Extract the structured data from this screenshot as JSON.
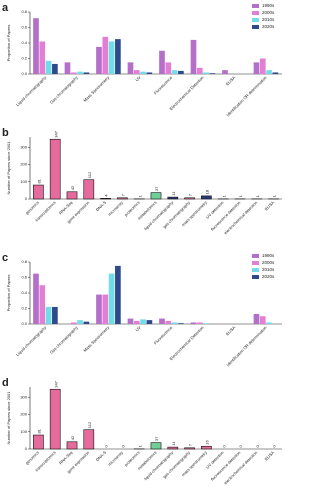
{
  "chart_data": [
    {
      "type": "grouped-bar",
      "panel": "a",
      "y_label": "Proportion of Papers",
      "categories": [
        "Liquid chromatography",
        "Gas chromatography",
        "Mass Spectrometry",
        "UV",
        "Fluorescence",
        "Electrochemical Detection",
        "ELISA",
        "Identification OR determination"
      ],
      "series": [
        {
          "name": "1990s",
          "color": "#b46fc8",
          "values": [
            0.72,
            0.15,
            0.35,
            0.15,
            0.3,
            0.44,
            0.05,
            0.15
          ]
        },
        {
          "name": "2000s",
          "color": "#e27fd4",
          "values": [
            0.42,
            0.02,
            0.48,
            0.05,
            0.15,
            0.08,
            0,
            0.2
          ]
        },
        {
          "name": "2010s",
          "color": "#72dde8",
          "values": [
            0.17,
            0.03,
            0.42,
            0.03,
            0.05,
            0.02,
            0,
            0.05
          ]
        },
        {
          "name": "2020s",
          "color": "#2e4a8c",
          "values": [
            0.13,
            0.02,
            0.45,
            0.02,
            0.04,
            0.01,
            0,
            0.02
          ]
        }
      ],
      "ylim": [
        0,
        0.8
      ],
      "yticks": [
        {
          "value": 0,
          "label": "0.0"
        },
        0.2,
        0.4,
        0.6,
        0.8
      ],
      "legend": "top-right"
    },
    {
      "type": "bar",
      "panel": "b",
      "y_label": "Number of Papers since 2001",
      "categories": [
        "genomics",
        "transcriptomics",
        "RNA-Seq",
        "gene expression",
        "DNA-S",
        "microarray",
        "proteomics",
        "metabolomics",
        "liquid chromatography",
        "gas chromatography",
        "mass spectrometry",
        "UV detection",
        "fluorescence detection",
        "electrochemical detection",
        "ELISA"
      ],
      "values": [
        81,
        347,
        42,
        112,
        4,
        7,
        1,
        37,
        11,
        7,
        18,
        1,
        1,
        1,
        1
      ],
      "colors": [
        "#e56b9c",
        "#e56b9c",
        "#e56b9c",
        "#e56b9c",
        "#e56b9c",
        "#e56b9c",
        "#e56b9c",
        "#6fcf97",
        "#2b3a80",
        "#e56b9c",
        "#2b3a80",
        "#e56b9c",
        "#e56b9c",
        "#e56b9c",
        "#e56b9c"
      ],
      "ylim": [
        0,
        360
      ],
      "yticks": [
        0,
        100,
        200,
        300
      ]
    },
    {
      "type": "grouped-bar",
      "panel": "c",
      "y_label": "Proportion of Papers",
      "categories": [
        "Liquid chromatography",
        "Gas chromatography",
        "Mass Spectrometry",
        "UV",
        "Fluorescence",
        "Electrochemical Detection",
        "ELISA",
        "Identification OR determination"
      ],
      "series": [
        {
          "name": "1990s",
          "color": "#b46fc8",
          "values": [
            0.65,
            0,
            0.38,
            0.07,
            0.07,
            0.02,
            0,
            0.13
          ]
        },
        {
          "name": "2000s",
          "color": "#e27fd4",
          "values": [
            0.5,
            0.02,
            0.38,
            0.04,
            0.04,
            0.02,
            0,
            0.1
          ]
        },
        {
          "name": "2010s",
          "color": "#72dde8",
          "values": [
            0.22,
            0.05,
            0.65,
            0.06,
            0.02,
            0.01,
            0,
            0.02
          ]
        },
        {
          "name": "2020s",
          "color": "#2e4a8c",
          "values": [
            0.22,
            0.03,
            0.75,
            0.05,
            0.01,
            0,
            0,
            0
          ]
        }
      ],
      "ylim": [
        0,
        0.8
      ],
      "yticks": [
        {
          "value": 0,
          "label": "0.0"
        },
        0.2,
        0.4,
        0.6,
        0.8
      ],
      "legend": "top-right"
    },
    {
      "type": "bar",
      "panel": "d",
      "y_label": "Number of Papers since 2001",
      "categories": [
        "genomics",
        "transcriptomics",
        "RNA-Seq",
        "gene expression",
        "DNA-S",
        "microarray",
        "proteomics",
        "metabolomics",
        "liquid chromatography",
        "gas chromatography",
        "mass spectrometry",
        "UV detection",
        "fluorescence detection",
        "electrochemical detection",
        "ELISA"
      ],
      "values": [
        81,
        347,
        42,
        112,
        0,
        0,
        1,
        37,
        11,
        7,
        16,
        0,
        0,
        0,
        0
      ],
      "colors": [
        "#e56b9c",
        "#e56b9c",
        "#e56b9c",
        "#e56b9c",
        "#e56b9c",
        "#e56b9c",
        "#e56b9c",
        "#6fcf97",
        "#e56b9c",
        "#e56b9c",
        "#e56b9c",
        "#e56b9c",
        "#e56b9c",
        "#e56b9c",
        "#e56b9c"
      ],
      "ylim": [
        0,
        360
      ],
      "yticks": [
        0,
        100,
        200,
        300
      ]
    }
  ]
}
